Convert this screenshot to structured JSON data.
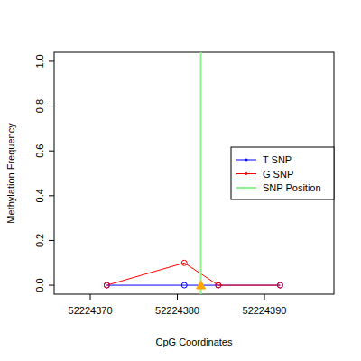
{
  "chart_data": {
    "type": "line",
    "x_label": "CpG Coordinates",
    "y_label": "Methylation Frequency",
    "x": [
      52224371.9,
      52224380.8,
      52224384.7,
      52224391.8
    ],
    "series": [
      {
        "name": "T SNP",
        "color": "#0000ff",
        "marker": "circle",
        "values": [
          0,
          0,
          0,
          0
        ]
      },
      {
        "name": "G SNP",
        "color": "#ff0000",
        "marker": "circle",
        "values": [
          0,
          0.1,
          0,
          0
        ]
      }
    ],
    "snp_position": {
      "name": "SNP Position",
      "color": "#90ee90",
      "x": 52224382.7
    },
    "xlim": [
      52224365.85,
      52224397.98
    ],
    "ylim": [
      -0.04,
      1.04
    ],
    "xticks": [
      52224370,
      52224380,
      52224390
    ],
    "yticks": [
      {
        "value": 0,
        "label": "0.0"
      },
      {
        "value": 0.2,
        "label": "0.2"
      },
      {
        "value": 0.4,
        "label": "0.4"
      },
      {
        "value": 0.6,
        "label": "0.6"
      },
      {
        "value": 0.8,
        "label": "0.8"
      },
      {
        "value": 1,
        "label": "1.0"
      }
    ],
    "legend": "right",
    "grid": false
  }
}
